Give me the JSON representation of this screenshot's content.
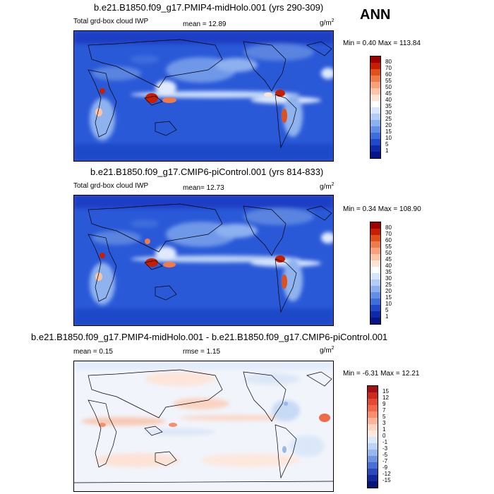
{
  "season": "ANN",
  "panels": [
    {
      "title": "b.e21.B1850.f09_g17.PMIP4-midHolo.001 (yrs 290-309)",
      "left_label": "Total grd-box cloud IWP",
      "mean": "mean =  12.89",
      "units": "g/m",
      "units_sup": "2",
      "minmax": "Min =   0.40 Max = 113.84",
      "levels": [
        "80",
        "70",
        "60",
        "55",
        "50",
        "45",
        "40",
        "35",
        "30",
        "25",
        "20",
        "15",
        "10",
        "5",
        "1"
      ],
      "colors": [
        "#9e0000",
        "#c81e00",
        "#e0501a",
        "#ef7a4a",
        "#f6a27a",
        "#fbc6a8",
        "#fde4d4",
        "#ffffff",
        "#d6e6fb",
        "#b3cdf6",
        "#8ab0ef",
        "#6390e6",
        "#3e6ddc",
        "#1f49c8",
        "#0d2aa8",
        "#0a148a"
      ]
    },
    {
      "title": "b.e21.B1850.f09_g17.CMIP6-piControl.001 (yrs 814-833)",
      "left_label": "Total grd-box cloud IWP",
      "mean": "mean=  12.73",
      "units": "g/m",
      "units_sup": "2",
      "minmax": "Min =   0.34 Max = 108.90",
      "levels": [
        "80",
        "70",
        "60",
        "55",
        "50",
        "45",
        "40",
        "35",
        "30",
        "25",
        "20",
        "15",
        "10",
        "5",
        "1"
      ],
      "colors": [
        "#9e0000",
        "#c81e00",
        "#e0501a",
        "#ef7a4a",
        "#f6a27a",
        "#fbc6a8",
        "#fde4d4",
        "#ffffff",
        "#d6e6fb",
        "#b3cdf6",
        "#8ab0ef",
        "#6390e6",
        "#3e6ddc",
        "#1f49c8",
        "#0d2aa8",
        "#0a148a"
      ]
    },
    {
      "title": "b.e21.B1850.f09_g17.PMIP4-midHolo.001 - b.e21.B1850.f09_g17.CMIP6-piControl.001",
      "mean": "mean =   0.15",
      "rmse": "rmse =   1.15",
      "units": "g/m",
      "units_sup": "2",
      "minmax": "Min =  -6.31 Max =  12.21",
      "levels": [
        "15",
        "12",
        "9",
        "7",
        "5",
        "3",
        "1",
        "0",
        "-1",
        "-3",
        "-5",
        "-7",
        "-9",
        "-12",
        "-15"
      ],
      "colors": [
        "#a50f15",
        "#cb2a1c",
        "#e34a33",
        "#ef6a4a",
        "#f78f6e",
        "#fbb496",
        "#fdd5c0",
        "#fde9dd",
        "#dbe8f8",
        "#bcd4f4",
        "#97b8ec",
        "#6f95e0",
        "#4a6fd2",
        "#2b49bd",
        "#14289e",
        "#0a1478"
      ]
    }
  ]
}
